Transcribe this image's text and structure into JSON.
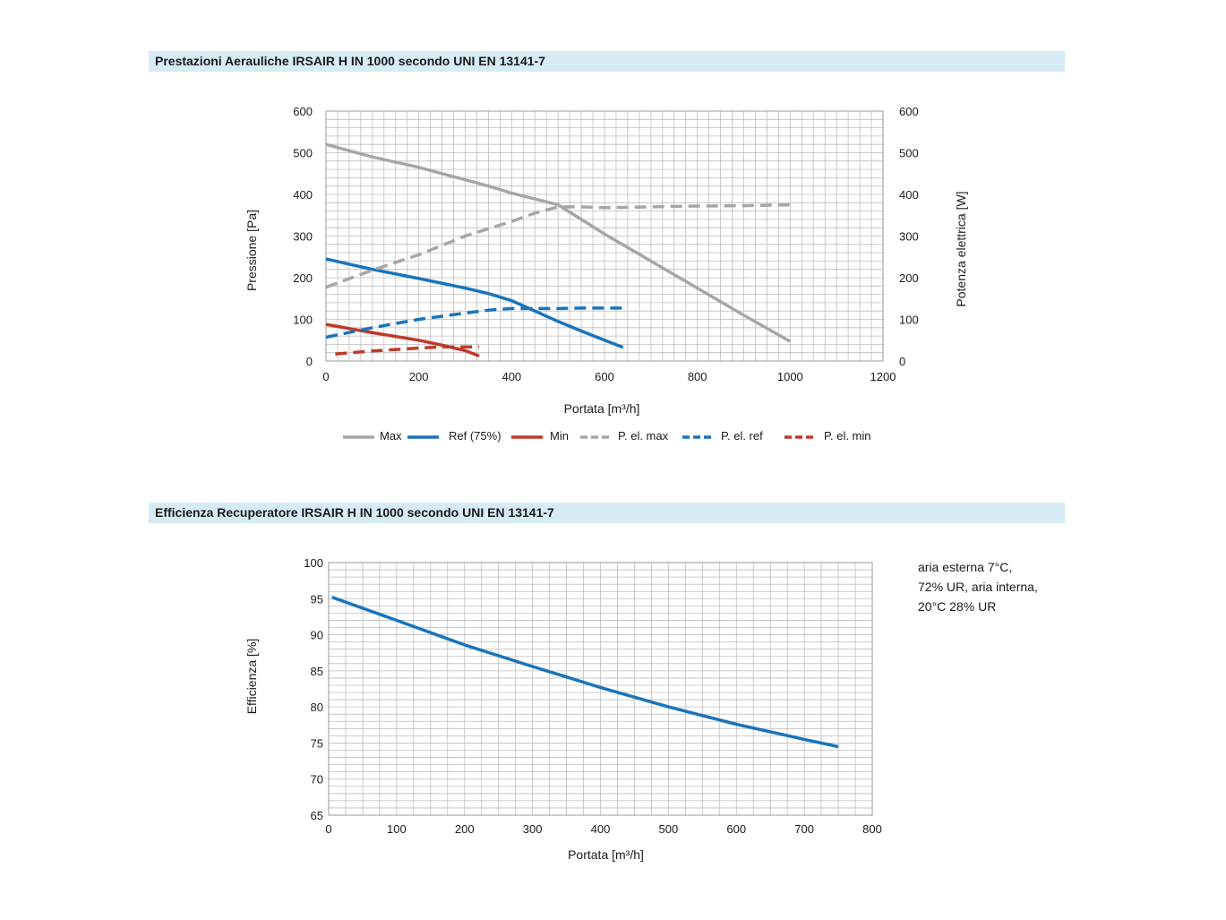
{
  "sections": {
    "performance_title": "Prestazioni Aerauliche IRSAIR H IN 1000 secondo UNI EN 13141-7",
    "efficiency_title": "Efficienza Recuperatore IRSAIR H IN 1000 secondo UNI EN 13141-7"
  },
  "colors": {
    "header_bg": "#d6ebf3",
    "grid": "#bdbdbd",
    "grey": "#a6a6a6",
    "blue": "#1a74bb",
    "red": "#c0392b"
  },
  "chart_data": [
    {
      "type": "line",
      "title": "Prestazioni Aerauliche IRSAIR H IN 1000 secondo UNI EN 13141-7",
      "xlabel": "Portata [m³/h]",
      "ylabel": "Pressione [Pa]",
      "y2label": "Potenza elettrica [W]",
      "xlim": [
        0,
        1200
      ],
      "ylim": [
        0,
        600
      ],
      "y2lim": [
        0,
        600
      ],
      "xticks": [
        "0",
        "200",
        "400",
        "600",
        "800",
        "1000",
        "1200"
      ],
      "yticks": [
        "0",
        "100",
        "200",
        "300",
        "400",
        "500",
        "600"
      ],
      "y2ticks": [
        "0",
        "100",
        "200",
        "300",
        "400",
        "500",
        "600"
      ],
      "grid": true,
      "legend_position": "bottom",
      "series": [
        {
          "name": "Max",
          "axis": "left",
          "style": "solid",
          "color": "#a6a6a6",
          "x": [
            0,
            100,
            200,
            300,
            350,
            400,
            500,
            550,
            600,
            700,
            800,
            900,
            1000
          ],
          "y": [
            520,
            490,
            465,
            435,
            420,
            403,
            375,
            340,
            305,
            240,
            175,
            110,
            47
          ]
        },
        {
          "name": "Ref (75%)",
          "axis": "left",
          "style": "solid",
          "color": "#1a74bb",
          "x": [
            0,
            100,
            200,
            300,
            350,
            400,
            450,
            500,
            550,
            600,
            640
          ],
          "y": [
            245,
            220,
            198,
            175,
            162,
            145,
            120,
            95,
            72,
            50,
            33
          ]
        },
        {
          "name": "Min",
          "axis": "left",
          "style": "solid",
          "color": "#c0392b",
          "x": [
            0,
            100,
            200,
            250,
            300,
            330
          ],
          "y": [
            88,
            68,
            50,
            38,
            25,
            12
          ]
        },
        {
          "name": "P. el. max",
          "axis": "right",
          "style": "dashed",
          "color": "#a6a6a6",
          "x": [
            0,
            100,
            200,
            300,
            400,
            450,
            500,
            550,
            600,
            700,
            800,
            900,
            1010
          ],
          "y": [
            177,
            218,
            255,
            300,
            335,
            355,
            370,
            370,
            368,
            370,
            372,
            373,
            375
          ]
        },
        {
          "name": "P. el. ref",
          "axis": "right",
          "style": "dashed",
          "color": "#1a74bb",
          "x": [
            0,
            100,
            200,
            300,
            350,
            400,
            450,
            500,
            550,
            600,
            640
          ],
          "y": [
            57,
            80,
            100,
            115,
            122,
            126,
            126,
            126,
            127,
            127,
            127
          ]
        },
        {
          "name": "P. el. min",
          "axis": "right",
          "style": "dashed",
          "color": "#c0392b",
          "x": [
            20,
            100,
            200,
            250,
            300,
            330
          ],
          "y": [
            17,
            24,
            31,
            34,
            34,
            34
          ]
        }
      ]
    },
    {
      "type": "line",
      "title": "Efficienza Recuperatore IRSAIR H IN 1000 secondo UNI EN 13141-7",
      "xlabel": "Portata [m³/h]",
      "ylabel": "Efficienza [%]",
      "xlim": [
        0,
        800
      ],
      "ylim": [
        65,
        100
      ],
      "xticks": [
        "0",
        "100",
        "200",
        "300",
        "400",
        "500",
        "600",
        "700",
        "800"
      ],
      "yticks": [
        "65",
        "70",
        "75",
        "80",
        "85",
        "90",
        "95",
        "100"
      ],
      "grid": true,
      "annotation": [
        "aria esterna 7°C,",
        "72% UR, aria interna,",
        "20°C 28% UR"
      ],
      "series": [
        {
          "name": "Efficienza",
          "style": "solid",
          "color": "#1a74bb",
          "x": [
            5,
            100,
            200,
            300,
            400,
            500,
            600,
            700,
            750
          ],
          "y": [
            95.2,
            92.0,
            88.6,
            85.6,
            82.7,
            80.0,
            77.6,
            75.5,
            74.5
          ]
        }
      ]
    }
  ]
}
